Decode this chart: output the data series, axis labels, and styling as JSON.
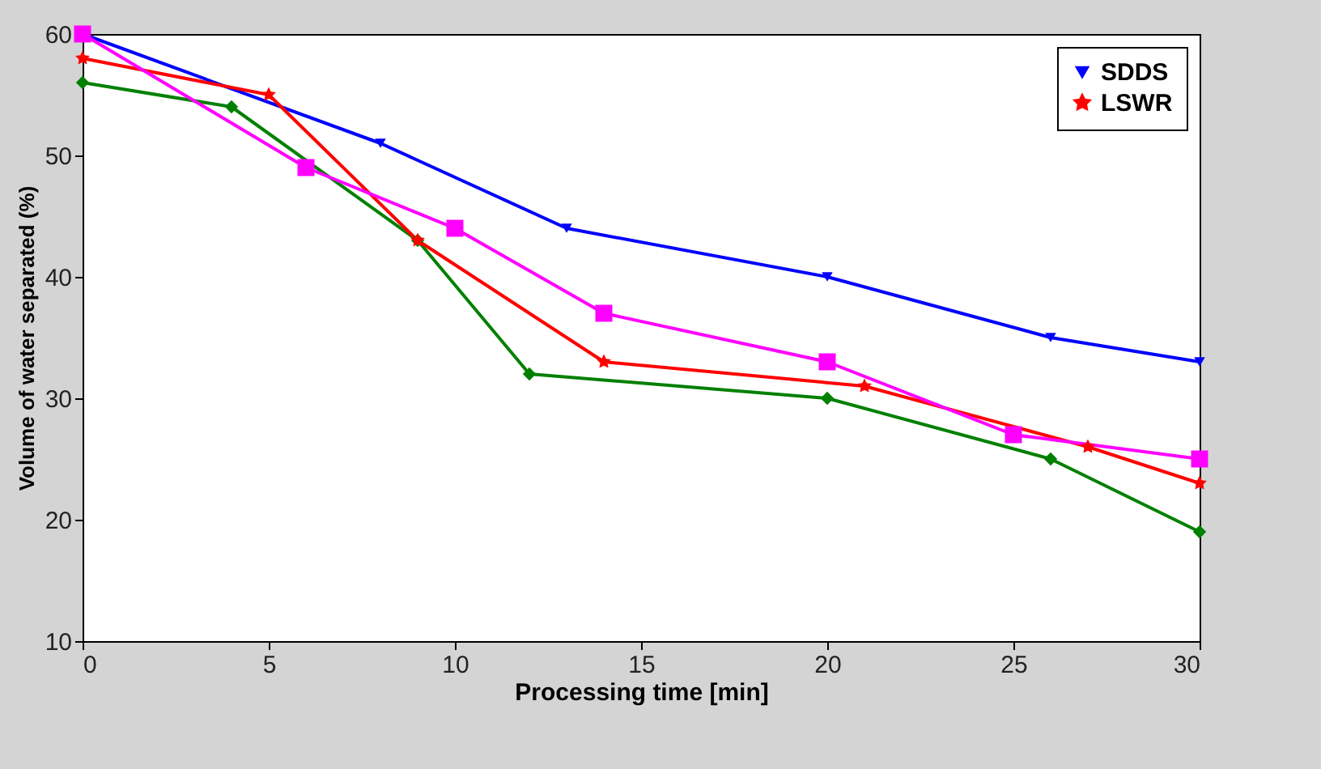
{
  "chart_data": {
    "type": "line",
    "xlabel": "Processing time [min]",
    "ylabel": "Volume of water separated (%)",
    "xlim": [
      0,
      30
    ],
    "xticks": [
      0,
      5,
      10,
      15,
      20,
      25,
      30
    ],
    "ylim": [
      10,
      60
    ],
    "yticks": [
      10,
      20,
      30,
      40,
      50,
      60
    ],
    "grid": false,
    "legend": "top right",
    "series": [
      {
        "name": "SDDS",
        "color": "#0000ff",
        "marker": "triangle",
        "x": [
          0,
          8,
          13,
          20,
          26,
          30
        ],
        "values": [
          60,
          51,
          44,
          40,
          35,
          33
        ]
      },
      {
        "color": "#008000",
        "marker": "diamond",
        "x": [
          0,
          4,
          9,
          12,
          20,
          26,
          30
        ],
        "values": [
          56,
          54,
          43,
          32,
          30,
          25,
          19
        ]
      },
      {
        "name": "LSWR",
        "color": "#ff0000",
        "marker": "star",
        "x": [
          0,
          5,
          9,
          14,
          21,
          27,
          30
        ],
        "values": [
          58,
          55,
          43,
          33,
          31,
          26,
          23
        ]
      },
      {
        "color": "#ff00ff",
        "marker": "square",
        "x": [
          0,
          6,
          10,
          14,
          20,
          25,
          30
        ],
        "values": [
          60,
          49,
          44,
          37,
          33,
          27,
          25
        ]
      }
    ]
  }
}
